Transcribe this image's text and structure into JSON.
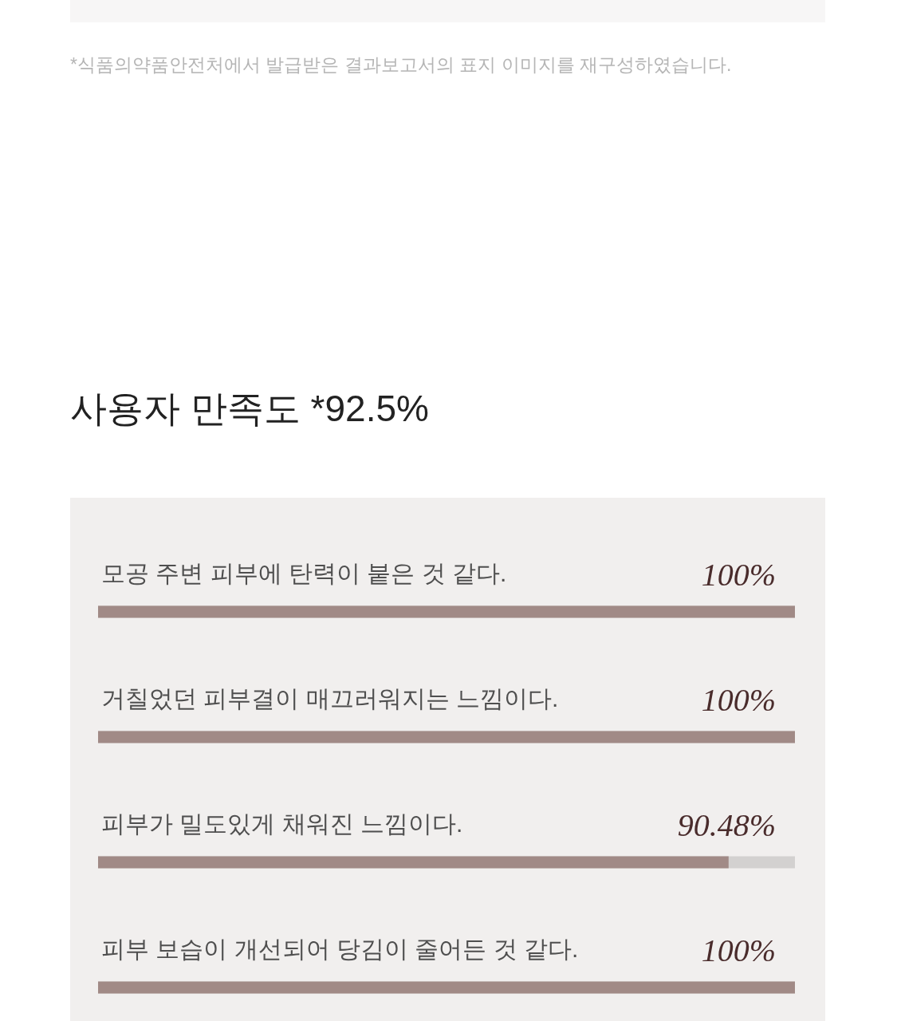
{
  "chart_data": {
    "type": "bar",
    "orientation": "horizontal",
    "title": "사용자 만족도 *92.5%",
    "categories": [
      "모공 주변 피부에 탄력이 붙은 것 같다.",
      "거칠었던 피부결이 매끄러워지는 느낌이다.",
      "피부가 밀도있게 채워진 느낌이다.",
      "피부 보습이 개선되어 당김이 줄어든 것 같다."
    ],
    "values": [
      100,
      100,
      90.48,
      100
    ],
    "value_labels": [
      "100%",
      "100%",
      "90.48%",
      "100%"
    ],
    "color": "#a18a86",
    "xlim": [
      0,
      100
    ],
    "tick_labels": false,
    "annotations": [
      "*식품의약품안전처에서 발급받은 결과보고서의 표지 이미지를 재구성하였습니다."
    ]
  }
}
